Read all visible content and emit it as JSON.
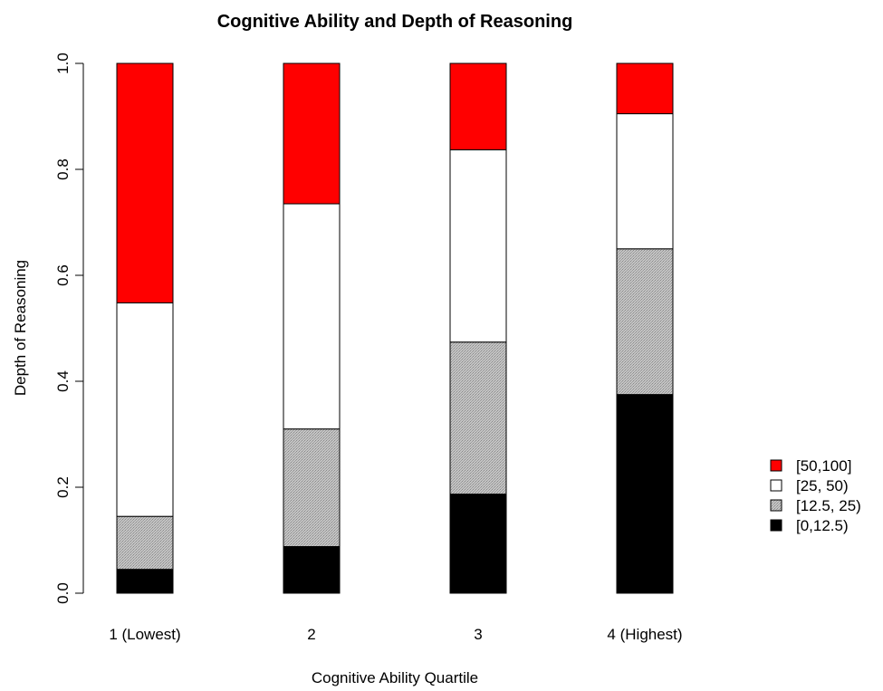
{
  "chart_data": {
    "type": "bar",
    "stacked": true,
    "title": "Cognitive Ability and Depth of Reasoning",
    "xlabel": "Cognitive Ability Quartile",
    "ylabel": "Depth of Reasoning",
    "ylim": [
      0,
      1
    ],
    "yticks": [
      "0.0",
      "0.2",
      "0.4",
      "0.6",
      "0.8",
      "1.0"
    ],
    "categories": [
      "1 (Lowest)",
      "2",
      "3",
      "4 (Highest)"
    ],
    "series": [
      {
        "name": "[0,12.5)",
        "color": "#000000",
        "pattern": "solid",
        "values": [
          0.045,
          0.088,
          0.187,
          0.375
        ]
      },
      {
        "name": "[12.5, 25)",
        "color": "#b0b0b0",
        "pattern": "stipple",
        "values": [
          0.1,
          0.222,
          0.287,
          0.275
        ]
      },
      {
        "name": "[25, 50)",
        "color": "#ffffff",
        "pattern": "solid",
        "values": [
          0.403,
          0.425,
          0.363,
          0.255
        ]
      },
      {
        "name": "[50,100]",
        "color": "#ff0000",
        "pattern": "solid",
        "values": [
          0.452,
          0.265,
          0.163,
          0.095
        ]
      }
    ],
    "legend": {
      "placement": "right",
      "order": [
        "[50,100]",
        "[25, 50)",
        "[12.5, 25)",
        "[0,12.5)"
      ]
    },
    "grid": false
  }
}
